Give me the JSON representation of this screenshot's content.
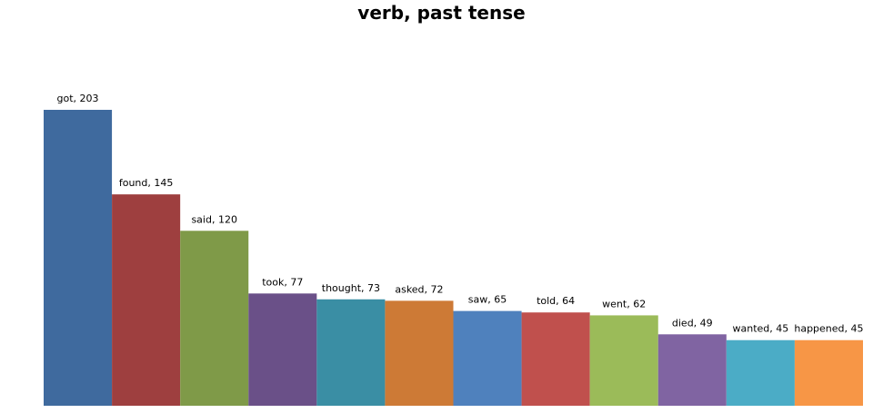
{
  "chart_data": {
    "type": "bar",
    "title": "verb, past tense",
    "xlabel": "",
    "ylabel": "",
    "ylim": [
      0,
      203
    ],
    "grid": false,
    "legend": "none",
    "bars": [
      {
        "category": "got",
        "value": 203,
        "label": "got, 203",
        "color": "#3F6A9E"
      },
      {
        "category": "found",
        "value": 145,
        "label": "found, 145",
        "color": "#9E3F3F"
      },
      {
        "category": "said",
        "value": 120,
        "label": "said, 120",
        "color": "#7F9A48"
      },
      {
        "category": "took",
        "value": 77,
        "label": "took, 77",
        "color": "#6A5088"
      },
      {
        "category": "thought",
        "value": 73,
        "label": "thought, 73",
        "color": "#3A8EA4"
      },
      {
        "category": "asked",
        "value": 72,
        "label": "asked, 72",
        "color": "#CD7A36"
      },
      {
        "category": "saw",
        "value": 65,
        "label": "saw, 65",
        "color": "#4F81BD"
      },
      {
        "category": "told",
        "value": 64,
        "label": "told, 64",
        "color": "#C0504D"
      },
      {
        "category": "went",
        "value": 62,
        "label": "went, 62",
        "color": "#9BBB59"
      },
      {
        "category": "died",
        "value": 49,
        "label": "died, 49",
        "color": "#8064A2"
      },
      {
        "category": "wanted",
        "value": 45,
        "label": "wanted, 45",
        "color": "#4BACC6"
      },
      {
        "category": "happened",
        "value": 45,
        "label": "happened, 45",
        "color": "#F79646"
      }
    ]
  }
}
